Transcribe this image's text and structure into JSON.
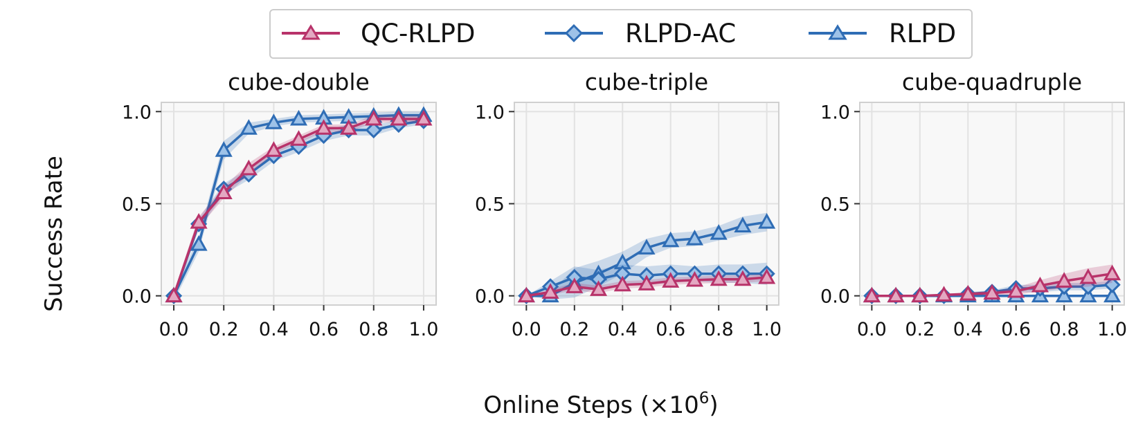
{
  "figure": {
    "ylabel": "Success Rate",
    "xlabel_main": "Online Steps (×10",
    "xlabel_exp": "6",
    "xlabel_close": ")",
    "legend": [
      {
        "name": "QC-RLPD",
        "color": "#b8336a",
        "marker": "triangle"
      },
      {
        "name": "RLPD-AC",
        "color": "#2f6db5",
        "marker": "diamond"
      },
      {
        "name": "RLPD",
        "color": "#2f6db5",
        "marker": "triangle"
      }
    ]
  },
  "chart_data": [
    {
      "type": "line",
      "title": "cube-double",
      "x": [
        0.0,
        0.1,
        0.2,
        0.3,
        0.4,
        0.5,
        0.6,
        0.7,
        0.8,
        0.9,
        1.0
      ],
      "xlim": [
        -0.05,
        1.05
      ],
      "ylim": [
        -0.05,
        1.05
      ],
      "xticks": [
        "0.0",
        "0.2",
        "0.4",
        "0.6",
        "0.8",
        "1.0"
      ],
      "yticks": [
        "0.0",
        "0.5",
        "1.0"
      ],
      "grid": true,
      "series": [
        {
          "name": "RLPD",
          "color": "#2f6db5",
          "marker": "triangle",
          "values": [
            0.0,
            0.28,
            0.79,
            0.91,
            0.94,
            0.96,
            0.965,
            0.97,
            0.975,
            0.98,
            0.98
          ],
          "band": [
            0.03,
            0.04,
            0.05,
            0.03,
            0.02,
            0.02,
            0.02,
            0.02,
            0.02,
            0.02,
            0.02
          ]
        },
        {
          "name": "RLPD-AC",
          "color": "#2f6db5",
          "marker": "diamond",
          "values": [
            0.0,
            0.39,
            0.58,
            0.66,
            0.76,
            0.81,
            0.87,
            0.9,
            0.9,
            0.93,
            0.95
          ],
          "band": [
            0.02,
            0.03,
            0.03,
            0.03,
            0.03,
            0.03,
            0.03,
            0.03,
            0.03,
            0.02,
            0.02
          ]
        },
        {
          "name": "QC-RLPD",
          "color": "#b8336a",
          "marker": "triangle",
          "values": [
            0.0,
            0.4,
            0.56,
            0.69,
            0.79,
            0.85,
            0.91,
            0.91,
            0.96,
            0.96,
            0.96
          ],
          "band": [
            0.02,
            0.03,
            0.03,
            0.03,
            0.02,
            0.02,
            0.02,
            0.02,
            0.02,
            0.02,
            0.02
          ]
        }
      ]
    },
    {
      "type": "line",
      "title": "cube-triple",
      "x": [
        0.0,
        0.1,
        0.2,
        0.3,
        0.4,
        0.5,
        0.6,
        0.7,
        0.8,
        0.9,
        1.0
      ],
      "xlim": [
        -0.05,
        1.05
      ],
      "ylim": [
        -0.05,
        1.05
      ],
      "xticks": [
        "0.0",
        "0.2",
        "0.4",
        "0.6",
        "0.8",
        "1.0"
      ],
      "yticks": [
        "0.0",
        "0.5",
        "1.0"
      ],
      "grid": true,
      "series": [
        {
          "name": "RLPD",
          "color": "#2f6db5",
          "marker": "triangle",
          "values": [
            0.0,
            0.0,
            0.07,
            0.12,
            0.18,
            0.26,
            0.3,
            0.31,
            0.34,
            0.38,
            0.4
          ],
          "band": [
            0.0,
            0.02,
            0.08,
            0.07,
            0.06,
            0.05,
            0.04,
            0.04,
            0.04,
            0.05,
            0.05
          ]
        },
        {
          "name": "RLPD-AC",
          "color": "#2f6db5",
          "marker": "diamond",
          "values": [
            0.0,
            0.05,
            0.1,
            0.09,
            0.12,
            0.11,
            0.12,
            0.12,
            0.12,
            0.12,
            0.12
          ],
          "band": [
            0.0,
            0.03,
            0.06,
            0.05,
            0.05,
            0.05,
            0.05,
            0.04,
            0.05,
            0.05,
            0.06
          ]
        },
        {
          "name": "QC-RLPD",
          "color": "#b8336a",
          "marker": "triangle",
          "values": [
            0.0,
            0.02,
            0.05,
            0.035,
            0.06,
            0.065,
            0.08,
            0.085,
            0.09,
            0.09,
            0.1
          ],
          "band": [
            0.0,
            0.015,
            0.02,
            0.02,
            0.02,
            0.02,
            0.02,
            0.02,
            0.02,
            0.02,
            0.02
          ]
        }
      ]
    },
    {
      "type": "line",
      "title": "cube-quadruple",
      "x": [
        0.0,
        0.1,
        0.2,
        0.3,
        0.4,
        0.5,
        0.6,
        0.7,
        0.8,
        0.9,
        1.0
      ],
      "xlim": [
        -0.05,
        1.05
      ],
      "ylim": [
        -0.05,
        1.05
      ],
      "xticks": [
        "0.0",
        "0.2",
        "0.4",
        "0.6",
        "0.8",
        "1.0"
      ],
      "yticks": [
        "0.0",
        "0.5",
        "1.0"
      ],
      "grid": true,
      "series": [
        {
          "name": "RLPD",
          "color": "#2f6db5",
          "marker": "triangle",
          "values": [
            0.0,
            0.0,
            0.0,
            0.0,
            0.0,
            0.0,
            0.0,
            0.0,
            0.0,
            0.0,
            0.0
          ],
          "band": [
            0.0,
            0.0,
            0.0,
            0.0,
            0.0,
            0.0,
            0.0,
            0.0,
            0.0,
            0.0,
            0.0
          ]
        },
        {
          "name": "RLPD-AC",
          "color": "#2f6db5",
          "marker": "diamond",
          "values": [
            0.0,
            0.0,
            0.0,
            0.0,
            0.01,
            0.02,
            0.04,
            0.04,
            0.05,
            0.05,
            0.06
          ],
          "band": [
            0.0,
            0.0,
            0.0,
            0.0,
            0.01,
            0.01,
            0.02,
            0.02,
            0.02,
            0.02,
            0.02
          ]
        },
        {
          "name": "QC-RLPD",
          "color": "#b8336a",
          "marker": "triangle",
          "values": [
            0.0,
            0.0,
            0.0,
            0.005,
            0.01,
            0.015,
            0.025,
            0.055,
            0.08,
            0.1,
            0.12
          ],
          "band": [
            0.0,
            0.0,
            0.0,
            0.005,
            0.01,
            0.01,
            0.02,
            0.03,
            0.04,
            0.05,
            0.05
          ]
        }
      ]
    }
  ]
}
